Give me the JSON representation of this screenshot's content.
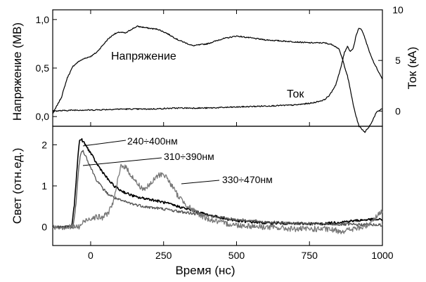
{
  "chart_data": [
    {
      "type": "line",
      "panel": "top",
      "x_range": [
        -130,
        1000
      ],
      "ylabel": "Напряжение (МВ)",
      "ylim": [
        -0.1,
        1.1
      ],
      "yticks": [
        0.0,
        0.5,
        1.0
      ],
      "ytick_labels": [
        "0,0",
        "0,5",
        "1,0"
      ],
      "y2label": "Ток (кА)",
      "y2lim": [
        -1.5,
        10
      ],
      "y2ticks": [
        0,
        5,
        10
      ],
      "y2tick_labels": [
        "0",
        "5",
        "10"
      ],
      "series": [
        {
          "name": "Напряжение",
          "axis": "left",
          "x": [
            -130,
            -100,
            -80,
            -60,
            -40,
            -20,
            0,
            20,
            40,
            60,
            80,
            100,
            120,
            140,
            160,
            180,
            200,
            230,
            260,
            300,
            350,
            400,
            450,
            500,
            550,
            600,
            650,
            700,
            750,
            800,
            830,
            850,
            860,
            870,
            880,
            890,
            900,
            910,
            920,
            940,
            960,
            980,
            1000
          ],
          "y": [
            0.03,
            0.2,
            0.4,
            0.52,
            0.57,
            0.6,
            0.62,
            0.66,
            0.73,
            0.8,
            0.85,
            0.87,
            0.86,
            0.9,
            0.93,
            0.92,
            0.91,
            0.9,
            0.86,
            0.79,
            0.73,
            0.75,
            0.8,
            0.83,
            0.81,
            0.79,
            0.78,
            0.77,
            0.76,
            0.76,
            0.74,
            0.7,
            0.62,
            0.52,
            0.42,
            0.28,
            0.12,
            0.0,
            -0.1,
            -0.16,
            -0.08,
            0.05,
            0.08
          ]
        },
        {
          "name": "Ток",
          "axis": "right",
          "x": [
            -130,
            -50,
            0,
            100,
            200,
            300,
            400,
            500,
            600,
            700,
            760,
            800,
            820,
            840,
            855,
            870,
            880,
            890,
            900,
            910,
            920,
            930,
            940,
            955,
            970,
            985,
            1000
          ],
          "y": [
            0.0,
            0.1,
            0.1,
            0.2,
            0.2,
            0.3,
            0.3,
            0.4,
            0.5,
            0.6,
            0.8,
            1.1,
            1.6,
            2.6,
            4.0,
            5.8,
            6.4,
            5.9,
            6.2,
            7.5,
            8.2,
            8.0,
            7.2,
            5.9,
            4.8,
            4.0,
            3.2
          ]
        }
      ],
      "annotations": [
        "Напряжение",
        "Ток"
      ]
    },
    {
      "type": "line",
      "panel": "bottom",
      "xlabel": "Время (нс)",
      "xlim": [
        -130,
        1000
      ],
      "xticks": [
        0,
        250,
        500,
        750,
        1000
      ],
      "xtick_labels": [
        "0",
        "250",
        "500",
        "750",
        "1000"
      ],
      "ylabel": "Свет (отн.ед.)",
      "ylim": [
        -0.45,
        2.45
      ],
      "yticks": [
        0,
        1,
        2
      ],
      "ytick_labels": [
        "0",
        "1",
        "2"
      ],
      "series": [
        {
          "name": "240÷400нм",
          "color": "#000000",
          "x": [
            -130,
            -65,
            -55,
            -45,
            -38,
            -30,
            -20,
            0,
            20,
            40,
            60,
            80,
            100,
            130,
            160,
            200,
            250,
            300,
            350,
            400,
            450,
            500,
            600,
            700,
            800,
            900,
            950,
            1000
          ],
          "y": [
            0.0,
            0.0,
            0.6,
            1.6,
            2.12,
            2.12,
            2.02,
            1.8,
            1.55,
            1.35,
            1.15,
            1.0,
            0.9,
            0.8,
            0.72,
            0.68,
            0.6,
            0.5,
            0.4,
            0.3,
            0.22,
            0.15,
            0.1,
            0.08,
            0.08,
            0.15,
            0.18,
            0.18
          ]
        },
        {
          "name": "310÷390нм",
          "color": "#555555",
          "x": [
            -130,
            -60,
            -50,
            -40,
            -32,
            -25,
            -15,
            0,
            20,
            40,
            60,
            80,
            100,
            150,
            200,
            250,
            300,
            400,
            500,
            600,
            700,
            800,
            900,
            1000
          ],
          "y": [
            0.0,
            0.0,
            0.6,
            1.5,
            1.85,
            1.84,
            1.7,
            1.45,
            1.15,
            0.95,
            0.8,
            0.72,
            0.65,
            0.55,
            0.48,
            0.44,
            0.38,
            0.28,
            0.18,
            0.12,
            0.09,
            0.07,
            0.06,
            0.05
          ]
        },
        {
          "name": "330÷470нм",
          "color": "#777777",
          "x": [
            -130,
            -40,
            -20,
            0,
            20,
            40,
            60,
            80,
            95,
            105,
            120,
            140,
            160,
            180,
            200,
            230,
            250,
            270,
            300,
            350,
            400,
            450,
            500,
            600,
            700,
            800,
            860,
            900,
            940,
            970,
            1000
          ],
          "y": [
            0.0,
            0.0,
            0.15,
            0.22,
            0.25,
            0.22,
            0.35,
            0.65,
            1.2,
            1.52,
            1.45,
            1.25,
            1.05,
            0.92,
            1.0,
            1.25,
            1.3,
            1.1,
            0.75,
            0.4,
            0.2,
            0.1,
            0.05,
            0.0,
            -0.05,
            -0.05,
            -0.1,
            -0.05,
            0.0,
            0.2,
            0.4
          ]
        }
      ],
      "annotations": [
        "240÷400нм",
        "310÷390нм",
        "330÷470нм"
      ]
    }
  ]
}
